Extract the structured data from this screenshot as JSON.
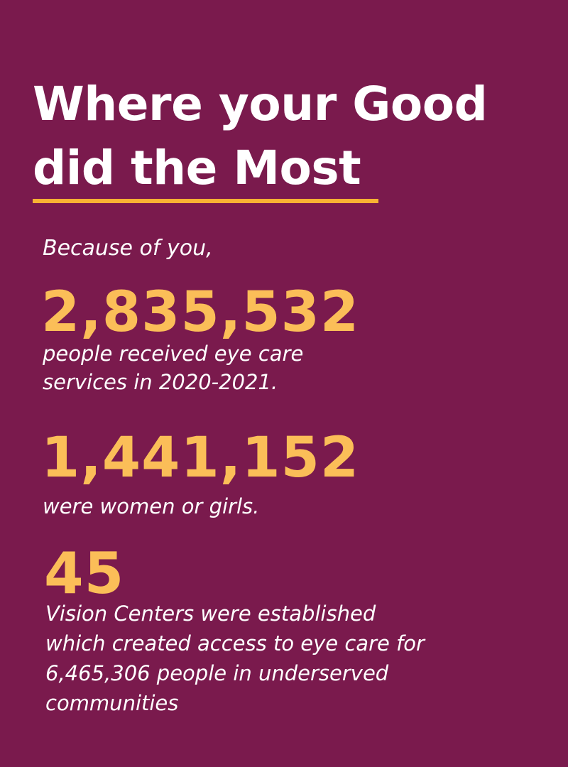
{
  "title": {
    "line1": "Where your Good",
    "line2": "did the Most"
  },
  "colors": {
    "background": "#7a1a4d",
    "accent": "#f9b233",
    "stat": "#fbbe58",
    "text": "#ffffff"
  },
  "intro": "Because of you,",
  "stats": [
    {
      "value": "2,835,532",
      "lines": [
        "people received eye care",
        "services in 2020-2021."
      ]
    },
    {
      "value": "1,441,152",
      "lines": [
        "were women or girls."
      ]
    },
    {
      "value": "45",
      "lines": [
        "Vision Centers were established",
        "which created access to eye care for",
        "6,465,306 people in underserved",
        "communities"
      ]
    }
  ]
}
